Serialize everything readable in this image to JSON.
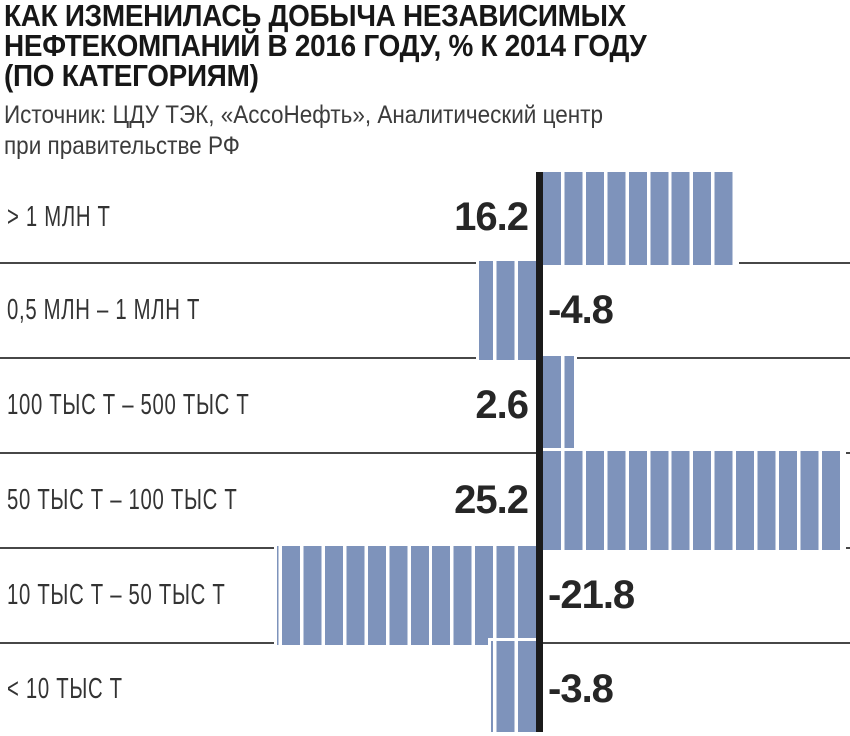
{
  "header": {
    "title_lines": [
      "КАК ИЗМЕНИЛАСЬ ДОБЫЧА НЕЗАВИСИМЫХ",
      "НЕФТЕКОМПАНИЙ В 2016 ГОДУ, % К 2014 ГОДУ",
      "(ПО КАТЕГОРИЯМ)"
    ],
    "source_lines": [
      "Источник: ЦДУ ТЭК, «АссоНефть», Аналитический центр",
      "при правительстве РФ"
    ]
  },
  "chart_data": {
    "type": "bar",
    "orientation": "horizontal",
    "title": "КАК ИЗМЕНИЛАСЬ ДОБЫЧА НЕЗАВИСИМЫХ НЕФТЕКОМПАНИЙ В 2016 ГОДУ, % К 2014 ГОДУ (ПО КАТЕГОРИЯМ)",
    "source": "Источник: ЦДУ ТЭК, «АссоНефть», Аналитический центр при правительстве РФ",
    "unit": "%",
    "categories": [
      "> 1 МЛН Т",
      "0,5 МЛН – 1 МЛН Т",
      "100 ТЫС Т – 500 ТЫС Т",
      "50 ТЫС Т – 100 ТЫС Т",
      "10 ТЫС Т – 50 ТЫС Т",
      "< 10 ТЫС Т"
    ],
    "values": [
      16.2,
      -4.8,
      2.6,
      25.2,
      -21.8,
      -3.8
    ],
    "value_labels": [
      "16.2",
      "-4.8",
      "2.6",
      "25.2",
      "-21.8",
      "-3.8"
    ],
    "xlim": [
      -26,
      26
    ],
    "zero_line": true,
    "grid": false,
    "legend": "none",
    "bar_style": "segmented-stripes",
    "colors": {
      "bar": "#7e93bb",
      "zero_axis": "#1b1b1b",
      "separator": "#474747",
      "title_text": "#171717",
      "value_text": "#262626",
      "category_text": "#333333"
    }
  }
}
